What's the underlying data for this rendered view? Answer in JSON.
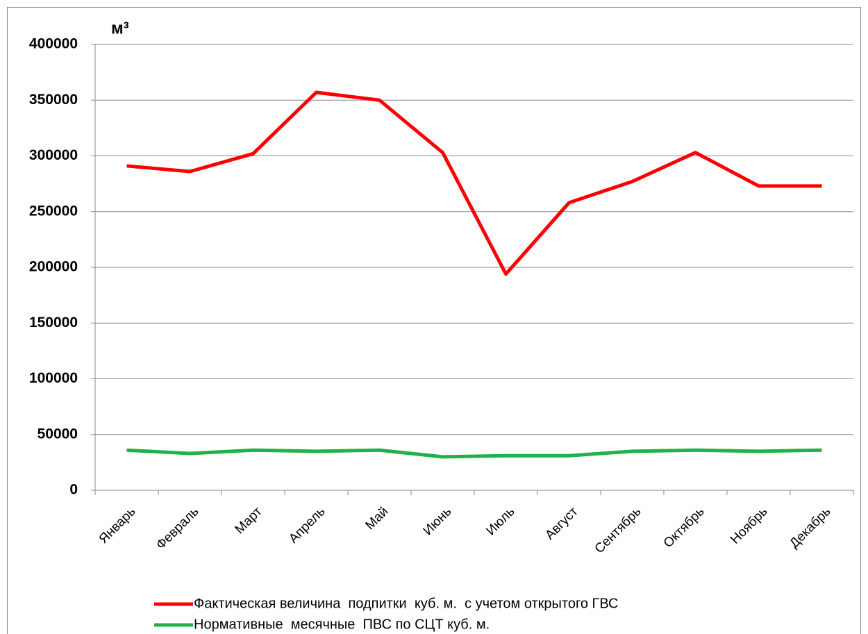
{
  "chart_data": {
    "type": "line",
    "y_label": "м³",
    "categories": [
      "Январь",
      "Февраль",
      "Март",
      "Апрель",
      "Май",
      "Июнь",
      "Июль",
      "Август",
      "Сентябрь",
      "Октябрь",
      "Ноябрь",
      "Декабрь"
    ],
    "series": [
      {
        "name": "Фактическая величина  подпитки  куб. м.  с учетом открытого ГВС",
        "color": "#ff0000",
        "values": [
          291000,
          286000,
          302000,
          357000,
          350000,
          303000,
          194000,
          258000,
          277000,
          303000,
          273000,
          273000
        ]
      },
      {
        "name": "Нормативные  месячные  ПВС по СЦТ куб. м.",
        "color": "#1fb24a",
        "values": [
          36000,
          33000,
          36000,
          35000,
          36000,
          30000,
          31000,
          31000,
          35000,
          36000,
          35000,
          36000
        ]
      }
    ],
    "ylim": [
      0,
      400000
    ],
    "yticks": [
      0,
      50000,
      100000,
      150000,
      200000,
      250000,
      300000,
      350000,
      400000
    ],
    "grid": true,
    "legend": "bottom"
  }
}
